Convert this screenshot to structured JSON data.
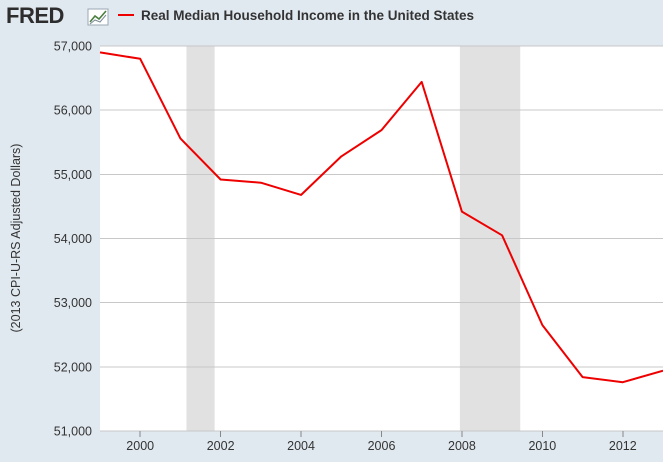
{
  "header": {
    "logo_text": "FRED",
    "logo_icon": "chart-line-icon"
  },
  "colors": {
    "background": "#e1e9f0",
    "plot_background": "#ffffff",
    "series_line": "#ee0000",
    "recession_band": "#e1e1e1",
    "grid": "#c8c8c8"
  },
  "chart_data": {
    "type": "line",
    "title": "",
    "xlabel": "",
    "ylabel": "(2013 CPI-U-RS Adjusted Dollars)",
    "xlim": [
      1999,
      2013
    ],
    "ylim": [
      51000,
      57000
    ],
    "x_ticks": [
      2000,
      2002,
      2004,
      2006,
      2008,
      2010,
      2012
    ],
    "y_ticks": [
      51000,
      52000,
      53000,
      54000,
      55000,
      56000,
      57000
    ],
    "y_tick_labels": [
      "51,000",
      "52,000",
      "53,000",
      "54,000",
      "55,000",
      "56,000",
      "57,000"
    ],
    "grid": "horizontal",
    "legend": "top-left",
    "recessions": [
      {
        "start": 2001.15,
        "end": 2001.85
      },
      {
        "start": 2007.95,
        "end": 2009.45
      }
    ],
    "series": [
      {
        "name": "Real Median Household Income in the United States",
        "x": [
          1999,
          2000,
          2001,
          2002,
          2003,
          2004,
          2005,
          2006,
          2007,
          2008,
          2009,
          2010,
          2011,
          2012,
          2013
        ],
        "values": [
          56900,
          56800,
          55560,
          54920,
          54870,
          54680,
          55280,
          55690,
          56440,
          54420,
          54050,
          52650,
          51840,
          51760,
          51940
        ]
      }
    ]
  }
}
